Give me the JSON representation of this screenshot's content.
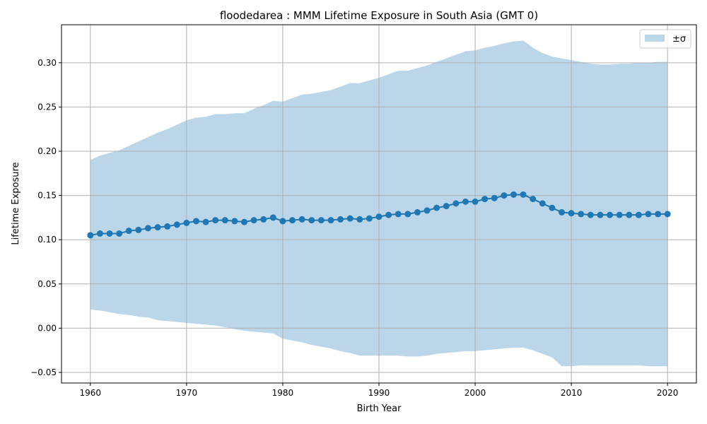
{
  "chart_data": {
    "type": "line",
    "title": "floodedarea : MMM Lifetime Exposure in South Asia (GMT 0)",
    "xlabel": "Birth Year",
    "ylabel": "Lifetime Exposure",
    "xlim": [
      1957,
      2023
    ],
    "ylim": [
      -0.062,
      0.343
    ],
    "xticks": [
      1960,
      1970,
      1980,
      1990,
      2000,
      2010,
      2020
    ],
    "yticks": [
      -0.05,
      0.0,
      0.05,
      0.1,
      0.15,
      0.2,
      0.25,
      0.3
    ],
    "grid": true,
    "legend": {
      "position": "top-right",
      "entries": [
        {
          "label": "±σ",
          "color": "#bbd6e8"
        }
      ]
    },
    "colors": {
      "line": "#1f77b4",
      "band": "#bbd6e8",
      "grid": "#b0b0b0"
    },
    "x": [
      1960,
      1961,
      1962,
      1963,
      1964,
      1965,
      1966,
      1967,
      1968,
      1969,
      1970,
      1971,
      1972,
      1973,
      1974,
      1975,
      1976,
      1977,
      1978,
      1979,
      1980,
      1981,
      1982,
      1983,
      1984,
      1985,
      1986,
      1987,
      1988,
      1989,
      1990,
      1991,
      1992,
      1993,
      1994,
      1995,
      1996,
      1997,
      1998,
      1999,
      2000,
      2001,
      2002,
      2003,
      2004,
      2005,
      2006,
      2007,
      2008,
      2009,
      2010,
      2011,
      2012,
      2013,
      2014,
      2015,
      2016,
      2017,
      2018,
      2019,
      2020
    ],
    "series": [
      {
        "name": "mean",
        "values": [
          0.105,
          0.107,
          0.107,
          0.107,
          0.11,
          0.111,
          0.113,
          0.114,
          0.115,
          0.117,
          0.119,
          0.121,
          0.12,
          0.122,
          0.122,
          0.121,
          0.12,
          0.122,
          0.123,
          0.125,
          0.121,
          0.122,
          0.123,
          0.122,
          0.122,
          0.122,
          0.123,
          0.124,
          0.123,
          0.124,
          0.126,
          0.128,
          0.129,
          0.129,
          0.131,
          0.133,
          0.136,
          0.138,
          0.141,
          0.143,
          0.143,
          0.146,
          0.147,
          0.15,
          0.151,
          0.151,
          0.146,
          0.141,
          0.136,
          0.131,
          0.13,
          0.129,
          0.128,
          0.128,
          0.128,
          0.128,
          0.128,
          0.128,
          0.129,
          0.129,
          0.129
        ]
      }
    ],
    "band_upper": [
      0.19,
      0.195,
      0.198,
      0.201,
      0.206,
      0.211,
      0.216,
      0.221,
      0.225,
      0.23,
      0.235,
      0.238,
      0.239,
      0.242,
      0.242,
      0.243,
      0.243,
      0.248,
      0.252,
      0.257,
      0.256,
      0.26,
      0.264,
      0.265,
      0.267,
      0.269,
      0.273,
      0.277,
      0.277,
      0.28,
      0.283,
      0.287,
      0.291,
      0.291,
      0.294,
      0.297,
      0.301,
      0.305,
      0.309,
      0.313,
      0.314,
      0.317,
      0.319,
      0.322,
      0.324,
      0.325,
      0.317,
      0.311,
      0.307,
      0.305,
      0.303,
      0.301,
      0.299,
      0.298,
      0.298,
      0.299,
      0.299,
      0.3,
      0.3,
      0.301,
      0.301
    ],
    "band_lower": [
      0.021,
      0.02,
      0.018,
      0.016,
      0.015,
      0.013,
      0.012,
      0.009,
      0.008,
      0.007,
      0.006,
      0.005,
      0.004,
      0.003,
      0.001,
      -0.001,
      -0.003,
      -0.004,
      -0.005,
      -0.006,
      -0.012,
      -0.014,
      -0.016,
      -0.019,
      -0.021,
      -0.023,
      -0.026,
      -0.028,
      -0.031,
      -0.031,
      -0.031,
      -0.031,
      -0.031,
      -0.032,
      -0.032,
      -0.031,
      -0.029,
      -0.028,
      -0.027,
      -0.026,
      -0.026,
      -0.025,
      -0.024,
      -0.023,
      -0.022,
      -0.022,
      -0.025,
      -0.029,
      -0.033,
      -0.043,
      -0.043,
      -0.042,
      -0.042,
      -0.042,
      -0.042,
      -0.042,
      -0.042,
      -0.042,
      -0.043,
      -0.043,
      -0.043
    ]
  }
}
